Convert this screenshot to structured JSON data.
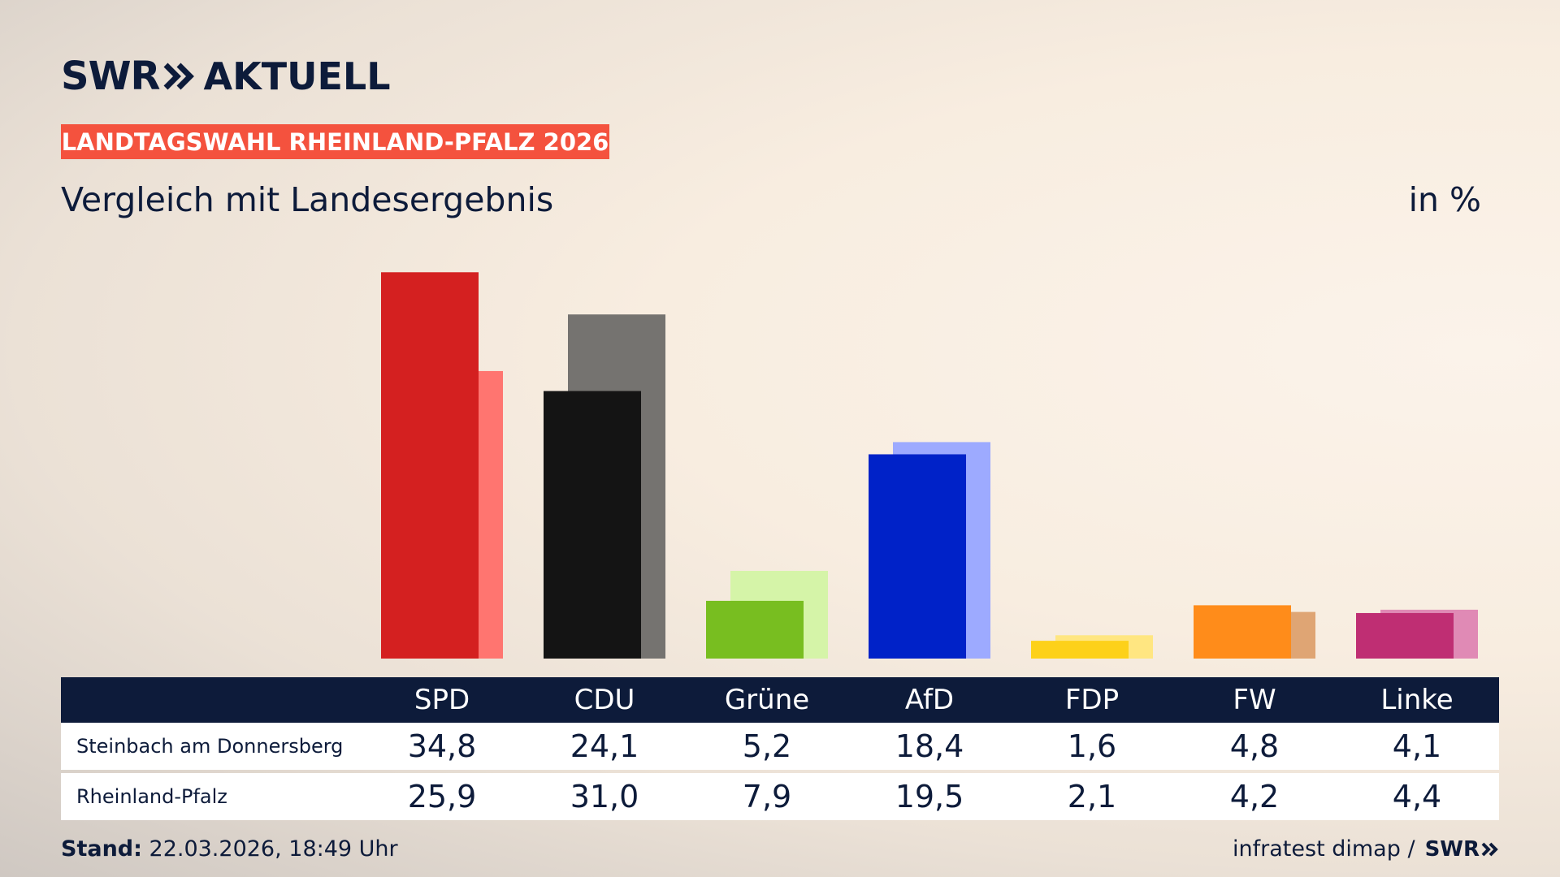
{
  "header": {
    "logo_swr": "SWR",
    "logo_aktuell": "AKTUELL",
    "tag": "LANDTAGSWAHL RHEINLAND-PFALZ 2026",
    "subtitle": "Vergleich mit Landesergebnis",
    "unit": "in %"
  },
  "chart_data": {
    "type": "bar",
    "categories": [
      "SPD",
      "CDU",
      "Grüne",
      "AfD",
      "FDP",
      "FW",
      "Linke"
    ],
    "series": [
      {
        "name": "Steinbach am Donnersberg",
        "values": [
          34.8,
          24.1,
          5.2,
          18.4,
          1.6,
          4.8,
          4.1
        ],
        "display": [
          "34,8",
          "24,1",
          "5,2",
          "18,4",
          "1,6",
          "4,8",
          "4,1"
        ]
      },
      {
        "name": "Rheinland-Pfalz",
        "values": [
          25.9,
          31.0,
          7.9,
          19.5,
          2.1,
          4.2,
          4.4
        ],
        "display": [
          "25,9",
          "31,0",
          "7,9",
          "19,5",
          "2,1",
          "4,2",
          "4,4"
        ]
      }
    ],
    "colors": {
      "primary": [
        "#d42020",
        "#141414",
        "#78be20",
        "#0022c8",
        "#fdd11a",
        "#ff8c1a",
        "#bf2e73"
      ],
      "secondary": [
        "#ff7570",
        "#757370",
        "#d5f4a8",
        "#9daaff",
        "#ffe681",
        "#dfa574",
        "#e08ab5"
      ]
    },
    "ylim": [
      0,
      36
    ]
  },
  "footer": {
    "stand_label": "Stand:",
    "stand_value": "22.03.2026, 18:49 Uhr",
    "source": "infratest dimap /",
    "source_logo": "SWR"
  }
}
